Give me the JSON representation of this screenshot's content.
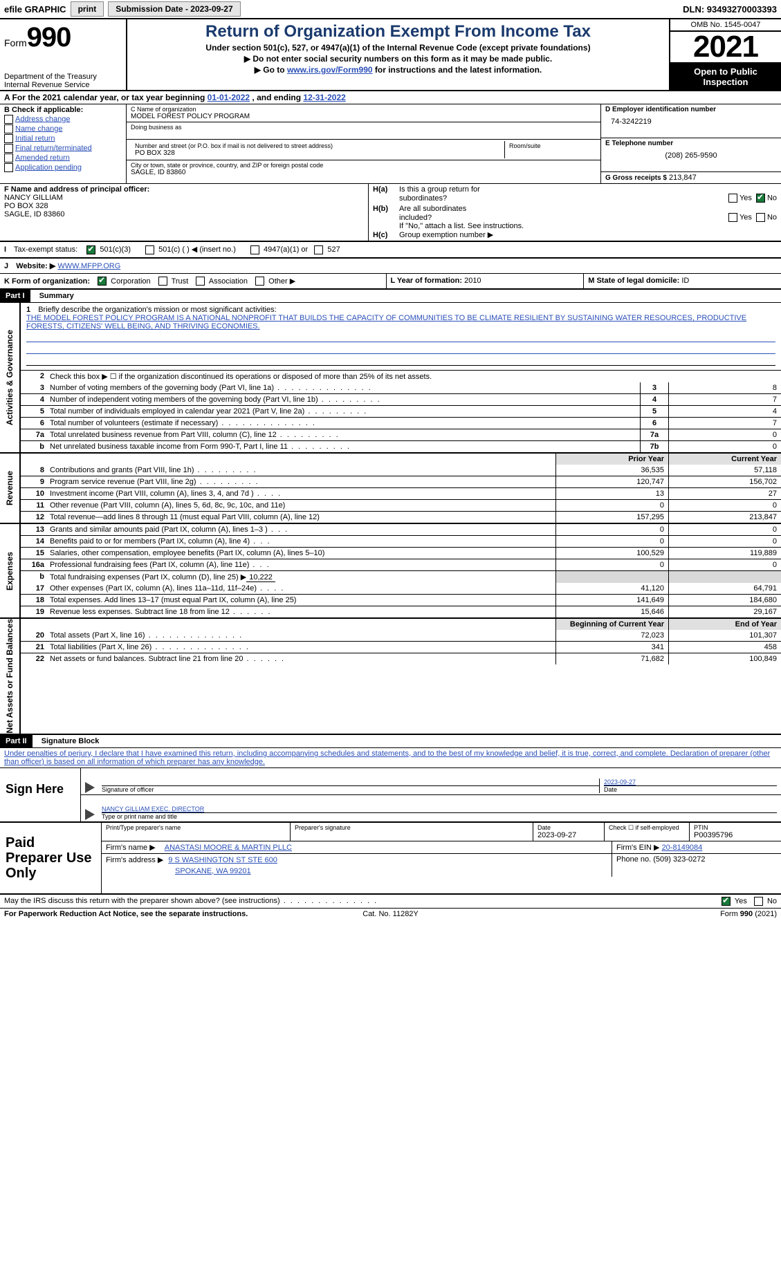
{
  "topbar": {
    "efile_label": "efile GRAPHIC",
    "print_btn": "print",
    "submission_label": "Submission Date - 2023-09-27",
    "dln_label": "DLN: 93493270003393"
  },
  "header": {
    "form_word": "Form",
    "form_number": "990",
    "dept1": "Department of the Treasury",
    "dept2": "Internal Revenue Service",
    "title": "Return of Organization Exempt From Income Tax",
    "subtitle1": "Under section 501(c), 527, or 4947(a)(1) of the Internal Revenue Code (except private foundations)",
    "subtitle2_prefix": "▶ Do not enter social security numbers on this form as it may be made public.",
    "subtitle3_prefix": "▶ Go to ",
    "subtitle3_link": "www.irs.gov/Form990",
    "subtitle3_suffix": " for instructions and the latest information.",
    "omb": "OMB No. 1545-0047",
    "year": "2021",
    "inspect1": "Open to Public",
    "inspect2": "Inspection"
  },
  "line_a": {
    "prefix": "A For the 2021 calendar year, or tax year beginning ",
    "begin": "01-01-2022",
    "mid": "  , and ending ",
    "end": "12-31-2022"
  },
  "box_b": {
    "header": "B Check if applicable:",
    "opt1": "Address change",
    "opt2": "Name change",
    "opt3": "Initial return",
    "opt4": "Final return/terminated",
    "opt5": "Amended return",
    "opt6": "Application pending"
  },
  "box_c": {
    "name_label": "C Name of organization",
    "name": "MODEL FOREST POLICY PROGRAM",
    "dba_label": "Doing business as",
    "street_label": "Number and street (or P.O. box if mail is not delivered to street address)",
    "room_label": "Room/suite",
    "street": "PO BOX 328",
    "city_label": "City or town, state or province, country, and ZIP or foreign postal code",
    "city": "SAGLE, ID  83860"
  },
  "box_d": {
    "label": "D Employer identification number",
    "value": "74-3242219"
  },
  "box_e": {
    "label": "E Telephone number",
    "value": "(208) 265-9590"
  },
  "box_g": {
    "label": "G Gross receipts $",
    "value": "213,847"
  },
  "box_f": {
    "label": "F Name and address of principal officer:",
    "name": "NANCY GILLIAM",
    "addr1": "PO BOX 328",
    "addr2": "SAGLE, ID  83860"
  },
  "box_h": {
    "ha_label": "H(a)",
    "ha_q1": "Is this a group return for",
    "ha_q2": "subordinates?",
    "hb_label": "H(b)",
    "hb_q1": "Are all subordinates",
    "hb_q2": "included?",
    "hb_note": "If \"No,\" attach a list. See instructions.",
    "hc_label": "H(c)",
    "hc_q": "Group exemption number ▶",
    "yes": "Yes",
    "no": "No"
  },
  "line_i": {
    "label": "I",
    "text": "Tax-exempt status:",
    "c3": "501(c)(3)",
    "c": "501(c) (  ) ◀ (insert no.)",
    "a1": "4947(a)(1) or",
    "s527": "527"
  },
  "line_j": {
    "label": "J",
    "text": "Website: ▶",
    "value": "  WWW.MFPP.ORG"
  },
  "line_k": {
    "label": "K Form of organization:",
    "corp": "Corporation",
    "trust": "Trust",
    "assoc": "Association",
    "other": "Other ▶"
  },
  "line_l": {
    "label": "L Year of formation:",
    "value": "2010"
  },
  "line_m": {
    "label": "M State of legal domicile:",
    "value": "ID"
  },
  "part1": {
    "header": "Part I",
    "title": "Summary"
  },
  "s1": {
    "num": "1",
    "label": "Briefly describe the organization's mission or most significant activities:",
    "mission": "THE MODEL FOREST POLICY PROGRAM IS A NATIONAL NONPROFIT THAT BUILDS THE CAPACITY OF COMMUNITIES TO BE CLIMATE RESILIENT BY SUSTAINING WATER RESOURCES, PRODUCTIVE FORESTS, CITIZENS' WELL BEING, AND THRIVING ECONOMIES."
  },
  "s2": {
    "num": "2",
    "label": "Check this box ▶ ☐ if the organization discontinued its operations or disposed of more than 25% of its net assets."
  },
  "rows_ag": [
    {
      "n": "3",
      "d": "Number of voting members of the governing body (Part VI, line 1a)",
      "box": "3",
      "v": "8"
    },
    {
      "n": "4",
      "d": "Number of independent voting members of the governing body (Part VI, line 1b)",
      "box": "4",
      "v": "7"
    },
    {
      "n": "5",
      "d": "Total number of individuals employed in calendar year 2021 (Part V, line 2a)",
      "box": "5",
      "v": "4"
    },
    {
      "n": "6",
      "d": "Total number of volunteers (estimate if necessary)",
      "box": "6",
      "v": "7"
    },
    {
      "n": "7a",
      "d": "Total unrelated business revenue from Part VIII, column (C), line 12",
      "box": "7a",
      "v": "0"
    },
    {
      "n": "b",
      "d": "Net unrelated business taxable income from Form 990-T, Part I, line 11",
      "box": "7b",
      "v": "0"
    }
  ],
  "colhdr": {
    "prior": "Prior Year",
    "current": "Current Year"
  },
  "rows_rev": [
    {
      "n": "8",
      "d": "Contributions and grants (Part VIII, line 1h)",
      "p": "36,535",
      "c": "57,118"
    },
    {
      "n": "9",
      "d": "Program service revenue (Part VIII, line 2g)",
      "p": "120,747",
      "c": "156,702"
    },
    {
      "n": "10",
      "d": "Investment income (Part VIII, column (A), lines 3, 4, and 7d )",
      "p": "13",
      "c": "27"
    },
    {
      "n": "11",
      "d": "Other revenue (Part VIII, column (A), lines 5, 6d, 8c, 9c, 10c, and 11e)",
      "p": "0",
      "c": "0"
    },
    {
      "n": "12",
      "d": "Total revenue—add lines 8 through 11 (must equal Part VIII, column (A), line 12)",
      "p": "157,295",
      "c": "213,847"
    }
  ],
  "rows_exp": [
    {
      "n": "13",
      "d": "Grants and similar amounts paid (Part IX, column (A), lines 1–3 )",
      "p": "0",
      "c": "0"
    },
    {
      "n": "14",
      "d": "Benefits paid to or for members (Part IX, column (A), line 4)",
      "p": "0",
      "c": "0"
    },
    {
      "n": "15",
      "d": "Salaries, other compensation, employee benefits (Part IX, column (A), lines 5–10)",
      "p": "100,529",
      "c": "119,889"
    },
    {
      "n": "16a",
      "d": "Professional fundraising fees (Part IX, column (A), line 11e)",
      "p": "0",
      "c": "0"
    }
  ],
  "row16b": {
    "n": "b",
    "d": "Total fundraising expenses (Part IX, column (D), line 25) ▶",
    "v": "10,222"
  },
  "rows_exp2": [
    {
      "n": "17",
      "d": "Other expenses (Part IX, column (A), lines 11a–11d, 11f–24e)",
      "p": "41,120",
      "c": "64,791"
    },
    {
      "n": "18",
      "d": "Total expenses. Add lines 13–17 (must equal Part IX, column (A), line 25)",
      "p": "141,649",
      "c": "184,680"
    },
    {
      "n": "19",
      "d": "Revenue less expenses. Subtract line 18 from line 12",
      "p": "15,646",
      "c": "29,167"
    }
  ],
  "colhdr2": {
    "begin": "Beginning of Current Year",
    "end": "End of Year"
  },
  "rows_net": [
    {
      "n": "20",
      "d": "Total assets (Part X, line 16)",
      "p": "72,023",
      "c": "101,307"
    },
    {
      "n": "21",
      "d": "Total liabilities (Part X, line 26)",
      "p": "341",
      "c": "458"
    },
    {
      "n": "22",
      "d": "Net assets or fund balances. Subtract line 21 from line 20",
      "p": "71,682",
      "c": "100,849"
    }
  ],
  "vtabs": {
    "ag": "Activities & Governance",
    "rev": "Revenue",
    "exp": "Expenses",
    "net": "Net Assets or Fund Balances"
  },
  "part2": {
    "header": "Part II",
    "title": "Signature Block"
  },
  "penalty": "Under penalties of perjury, I declare that I have examined this return, including accompanying schedules and statements, and to the best of my knowledge and belief, it is true, correct, and complete. Declaration of preparer (other than officer) is based on all information of which preparer has any knowledge.",
  "sign": {
    "label": "Sign Here",
    "sig_label": "Signature of officer",
    "date_value": "2023-09-27",
    "date_label": "Date",
    "name": "NANCY GILLIAM  EXEC. DIRECTOR",
    "name_label": "Type or print name and title"
  },
  "prep": {
    "label": "Paid Preparer Use Only",
    "h_name": "Print/Type preparer's name",
    "h_sig": "Preparer's signature",
    "h_date": "Date",
    "date_v": "2023-09-27",
    "h_check": "Check ☐ if self-employed",
    "h_ptin": "PTIN",
    "ptin": "P00395796",
    "firm_name_lbl": "Firm's name    ▶",
    "firm_name": "ANASTASI MOORE & MARTIN PLLC",
    "firm_ein_lbl": "Firm's EIN ▶",
    "firm_ein": "20-8149084",
    "firm_addr_lbl": "Firm's address ▶",
    "firm_addr1": "9 S WASHINGTON ST STE 600",
    "firm_addr2": "SPOKANE, WA  99201",
    "phone_lbl": "Phone no.",
    "phone": "(509) 323-0272"
  },
  "discuss": {
    "q": "May the IRS discuss this return with the preparer shown above? (see instructions)",
    "yes": "Yes",
    "no": "No"
  },
  "footer": {
    "left": "For Paperwork Reduction Act Notice, see the separate instructions.",
    "center": "Cat. No. 11282Y",
    "right": "Form 990 (2021)"
  },
  "colors": {
    "title_color": "#1a3a6d",
    "link_color": "#2a4fb8",
    "check_green": "#1a7a3a"
  }
}
